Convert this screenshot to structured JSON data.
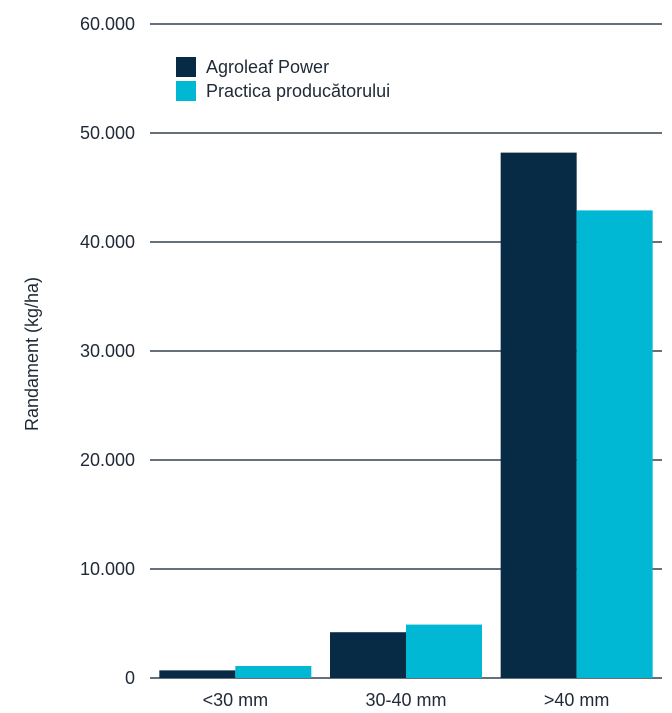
{
  "chart_data": {
    "type": "bar",
    "title": "",
    "xlabel": "",
    "ylabel": "Randament (kg/ha)",
    "categories": [
      "<30 mm",
      "30-40 mm",
      ">40 mm"
    ],
    "series": [
      {
        "name": "Agroleaf Power",
        "values": [
          700,
          4200,
          48200
        ],
        "color": "#072a45"
      },
      {
        "name": "Practica producătorului",
        "values": [
          1100,
          4900,
          42900
        ],
        "color": "#00b8d4"
      }
    ],
    "ylim": [
      0,
      60000
    ],
    "yticks": [
      0,
      10000,
      20000,
      30000,
      40000,
      50000,
      60000
    ],
    "ytick_labels": [
      "0",
      "10.000",
      "20.000",
      "30.000",
      "40.000",
      "50.000",
      "60.000"
    ],
    "grid": true,
    "legend_position": "top-left"
  }
}
